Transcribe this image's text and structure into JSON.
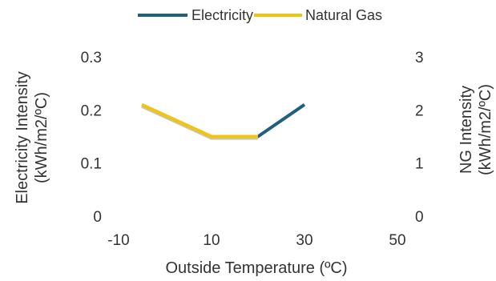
{
  "chart_data": {
    "type": "line",
    "xlabel": "Outside Temperature (ºC)",
    "ylabel_left": [
      "Electricity Intensity",
      "(kWh/m2/ºC)"
    ],
    "ylabel_right": [
      "NG Intensity",
      "(kWh/m2/ºC)"
    ],
    "xlim": [
      -10,
      50
    ],
    "ylim_left": [
      0,
      0.3
    ],
    "ylim_right": [
      0,
      3
    ],
    "x_ticks": [
      "-10",
      "10",
      "30",
      "50"
    ],
    "y_left_ticks": [
      "0",
      "0.1",
      "0.2",
      "0.3"
    ],
    "y_right_ticks": [
      "0",
      "1",
      "2",
      "3"
    ],
    "grid": false,
    "legend_position": "top",
    "series": [
      {
        "name": "Electricity",
        "axis": "left",
        "color": "#1f5f7f",
        "x": [
          10,
          20,
          30
        ],
        "y": [
          0.15,
          0.15,
          0.21
        ]
      },
      {
        "name": "Natural Gas",
        "axis": "right",
        "color": "#f2c40f",
        "x": [
          -5,
          10,
          20
        ],
        "y": [
          2.1,
          1.5,
          1.5
        ]
      }
    ]
  }
}
